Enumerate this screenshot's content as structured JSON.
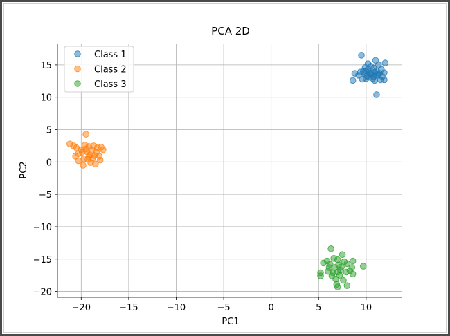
{
  "chart_data": {
    "type": "scatter",
    "title": "PCA 2D",
    "xlabel": "PC1",
    "ylabel": "PC2",
    "xlim": [
      -22.5,
      13.8
    ],
    "ylim": [
      -20.9,
      18.3
    ],
    "xticks": [
      -20,
      -15,
      -10,
      -5,
      0,
      5,
      10
    ],
    "yticks": [
      -20,
      -15,
      -10,
      -5,
      0,
      5,
      10,
      15
    ],
    "grid": true,
    "legend_position": "top-left",
    "series": [
      {
        "name": "Class 1",
        "color": "#1f77b4",
        "points": [
          [
            9.5,
            16.5
          ],
          [
            11.0,
            15.7
          ],
          [
            10.2,
            15.2
          ],
          [
            11.3,
            15.0
          ],
          [
            12.0,
            15.3
          ],
          [
            9.9,
            14.6
          ],
          [
            10.5,
            14.8
          ],
          [
            11.6,
            14.3
          ],
          [
            10.0,
            14.1
          ],
          [
            10.8,
            14.5
          ],
          [
            11.2,
            13.6
          ],
          [
            9.4,
            13.9
          ],
          [
            8.8,
            13.7
          ],
          [
            9.2,
            13.4
          ],
          [
            9.8,
            13.7
          ],
          [
            10.1,
            13.3
          ],
          [
            10.4,
            13.8
          ],
          [
            10.6,
            13.5
          ],
          [
            10.9,
            13.9
          ],
          [
            11.1,
            14.1
          ],
          [
            11.4,
            13.7
          ],
          [
            11.7,
            13.2
          ],
          [
            11.9,
            13.8
          ],
          [
            10.3,
            13.1
          ],
          [
            10.7,
            12.9
          ],
          [
            11.5,
            12.7
          ],
          [
            10.0,
            12.9
          ],
          [
            9.6,
            12.8
          ],
          [
            8.6,
            12.6
          ],
          [
            11.9,
            12.7
          ],
          [
            10.9,
            12.6
          ],
          [
            11.1,
            10.4
          ],
          [
            10.5,
            13.6
          ],
          [
            9.7,
            14.0
          ],
          [
            10.2,
            14.3
          ],
          [
            11.3,
            13.4
          ],
          [
            10.8,
            13.2
          ]
        ]
      },
      {
        "name": "Class 2",
        "color": "#ff7f0e",
        "points": [
          [
            -19.5,
            4.3
          ],
          [
            -21.2,
            2.8
          ],
          [
            -20.8,
            2.5
          ],
          [
            -20.5,
            2.2
          ],
          [
            -19.6,
            2.6
          ],
          [
            -19.2,
            2.4
          ],
          [
            -18.7,
            2.5
          ],
          [
            -18.3,
            2.2
          ],
          [
            -17.9,
            2.3
          ],
          [
            -17.7,
            1.9
          ],
          [
            -18.9,
            1.8
          ],
          [
            -19.4,
            1.6
          ],
          [
            -19.9,
            1.5
          ],
          [
            -20.3,
            1.3
          ],
          [
            -19.1,
            1.1
          ],
          [
            -18.6,
            1.0
          ],
          [
            -20.6,
            0.9
          ],
          [
            -18.1,
            0.9
          ],
          [
            -19.7,
            0.5
          ],
          [
            -19.3,
            0.4
          ],
          [
            -18.8,
            0.6
          ],
          [
            -20.3,
            0.2
          ],
          [
            -18.0,
            0.3
          ],
          [
            -19.0,
            -0.1
          ],
          [
            -18.5,
            -0.3
          ],
          [
            -19.8,
            -0.5
          ],
          [
            -19.5,
            2.0
          ],
          [
            -18.4,
            1.5
          ],
          [
            -20.0,
            1.9
          ],
          [
            -19.2,
            0.8
          ]
        ]
      },
      {
        "name": "Class 3",
        "color": "#2ca02c",
        "points": [
          [
            6.3,
            -13.4
          ],
          [
            7.5,
            -14.3
          ],
          [
            6.6,
            -14.9
          ],
          [
            7.0,
            -15.1
          ],
          [
            5.9,
            -15.3
          ],
          [
            5.5,
            -15.6
          ],
          [
            7.7,
            -15.4
          ],
          [
            8.6,
            -15.3
          ],
          [
            6.2,
            -15.8
          ],
          [
            7.1,
            -15.9
          ],
          [
            8.0,
            -15.7
          ],
          [
            6.7,
            -16.3
          ],
          [
            7.4,
            -16.2
          ],
          [
            8.5,
            -16.3
          ],
          [
            9.7,
            -16.1
          ],
          [
            5.2,
            -17.1
          ],
          [
            6.0,
            -16.9
          ],
          [
            6.5,
            -17.1
          ],
          [
            7.0,
            -17.0
          ],
          [
            7.9,
            -17.0
          ],
          [
            8.3,
            -16.8
          ],
          [
            5.2,
            -17.6
          ],
          [
            6.4,
            -17.6
          ],
          [
            7.2,
            -17.5
          ],
          [
            8.6,
            -17.3
          ],
          [
            6.8,
            -18.1
          ],
          [
            7.6,
            -18.3
          ],
          [
            6.9,
            -18.9
          ],
          [
            8.0,
            -19.1
          ],
          [
            7.0,
            -19.3
          ],
          [
            7.3,
            -16.7
          ],
          [
            6.1,
            -16.3
          ]
        ]
      }
    ]
  }
}
